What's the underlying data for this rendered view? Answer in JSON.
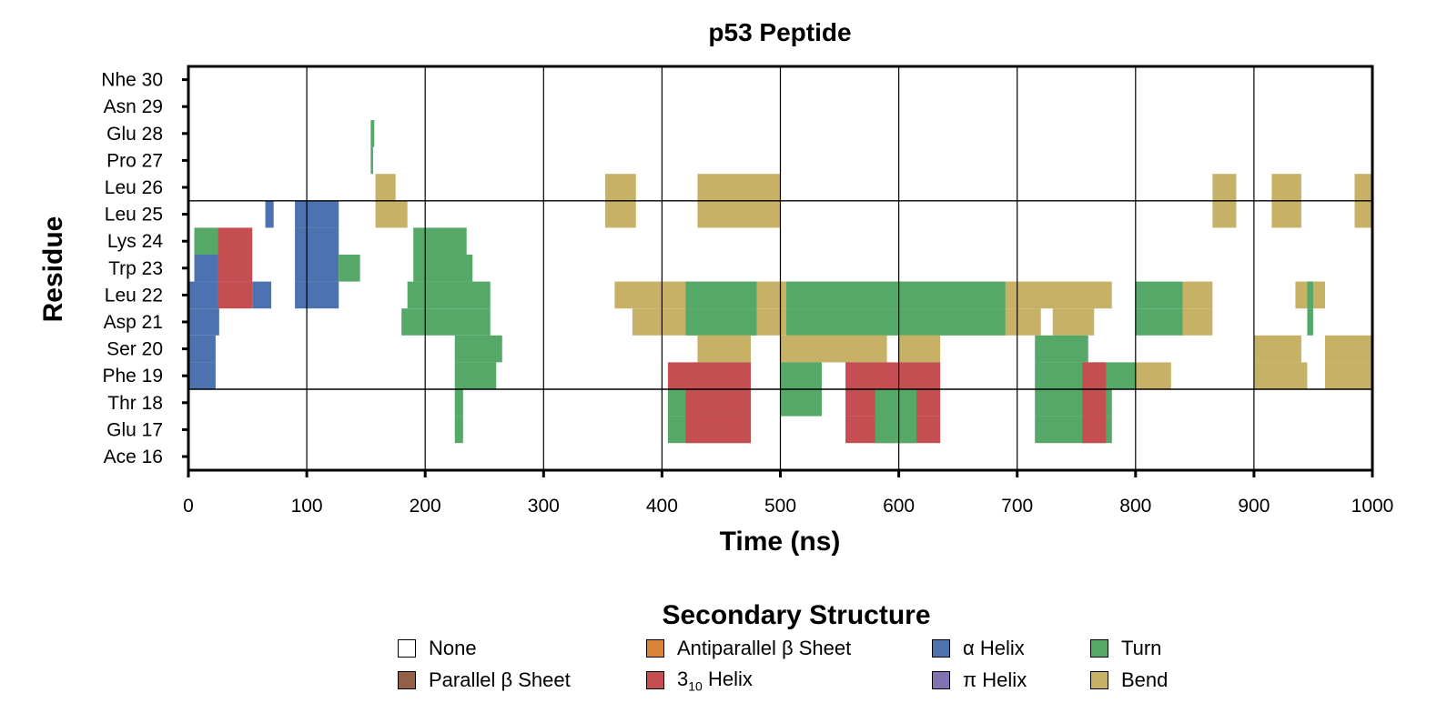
{
  "chart_data": {
    "type": "heatmap",
    "title": "p53 Peptide",
    "xlabel": "Time (ns)",
    "ylabel": "Residue",
    "xlim": [
      0,
      1000
    ],
    "xticks": [
      "0",
      "100",
      "200",
      "300",
      "400",
      "500",
      "600",
      "700",
      "800",
      "900",
      "1000"
    ],
    "residues": [
      "Ace 16",
      "Glu 17",
      "Thr 18",
      "Phe 19",
      "Ser 20",
      "Asp 21",
      "Leu 22",
      "Trp 23",
      "Lys 24",
      "Leu 25",
      "Leu 26",
      "Pro 27",
      "Glu 28",
      "Asn 29",
      "Nhe 30"
    ],
    "row_separators_after": [
      "Thr 18",
      "Leu 25"
    ],
    "legend_title": "Secondary Structure",
    "legend": [
      {
        "key": "none",
        "label": "None",
        "color": "#ffffff"
      },
      {
        "key": "antiparallel",
        "label": "Antiparallel β Sheet",
        "color": "#d9843b"
      },
      {
        "key": "alpha",
        "label": "α Helix",
        "color": "#4c72b0"
      },
      {
        "key": "turn",
        "label": "Turn",
        "color": "#55a868"
      },
      {
        "key": "parallel",
        "label": "Parallel β Sheet",
        "color": "#935f47"
      },
      {
        "key": "three10",
        "label": "3",
        "sub": "10",
        "label_suffix": " Helix",
        "color": "#c44e52"
      },
      {
        "key": "pi",
        "label": "π Helix",
        "color": "#8172b2"
      },
      {
        "key": "bend",
        "label": "Bend",
        "color": "#c7b166"
      }
    ],
    "segments": [
      {
        "residue": "Phe 19",
        "structure": "alpha",
        "start": 0,
        "end": 23
      },
      {
        "residue": "Ser 20",
        "structure": "alpha",
        "start": 0,
        "end": 23
      },
      {
        "residue": "Asp 21",
        "structure": "alpha",
        "start": 0,
        "end": 26
      },
      {
        "residue": "Leu 22",
        "structure": "alpha",
        "start": 0,
        "end": 25
      },
      {
        "residue": "Leu 22",
        "structure": "three10",
        "start": 25,
        "end": 54
      },
      {
        "residue": "Leu 22",
        "structure": "alpha",
        "start": 54,
        "end": 70
      },
      {
        "residue": "Leu 22",
        "structure": "alpha",
        "start": 90,
        "end": 127
      },
      {
        "residue": "Trp 23",
        "structure": "alpha",
        "start": 5,
        "end": 25
      },
      {
        "residue": "Trp 23",
        "structure": "three10",
        "start": 25,
        "end": 54
      },
      {
        "residue": "Trp 23",
        "structure": "alpha",
        "start": 90,
        "end": 127
      },
      {
        "residue": "Trp 23",
        "structure": "turn",
        "start": 127,
        "end": 145
      },
      {
        "residue": "Lys 24",
        "structure": "turn",
        "start": 5,
        "end": 25
      },
      {
        "residue": "Lys 24",
        "structure": "three10",
        "start": 25,
        "end": 54
      },
      {
        "residue": "Lys 24",
        "structure": "alpha",
        "start": 90,
        "end": 127
      },
      {
        "residue": "Leu 25",
        "structure": "alpha",
        "start": 65,
        "end": 72
      },
      {
        "residue": "Leu 25",
        "structure": "alpha",
        "start": 90,
        "end": 127
      },
      {
        "residue": "Trp 23",
        "structure": "turn",
        "start": 190,
        "end": 240
      },
      {
        "residue": "Leu 22",
        "structure": "turn",
        "start": 185,
        "end": 255
      },
      {
        "residue": "Asp 21",
        "structure": "turn",
        "start": 180,
        "end": 255
      },
      {
        "residue": "Lys 24",
        "structure": "turn",
        "start": 190,
        "end": 235
      },
      {
        "residue": "Ser 20",
        "structure": "turn",
        "start": 225,
        "end": 265
      },
      {
        "residue": "Phe 19",
        "structure": "turn",
        "start": 225,
        "end": 260
      },
      {
        "residue": "Glu 17",
        "structure": "turn",
        "start": 225,
        "end": 232
      },
      {
        "residue": "Thr 18",
        "structure": "turn",
        "start": 225,
        "end": 232
      },
      {
        "residue": "Leu 25",
        "structure": "bend",
        "start": 158,
        "end": 185
      },
      {
        "residue": "Leu 26",
        "structure": "bend",
        "start": 158,
        "end": 175
      },
      {
        "residue": "Leu 26",
        "structure": "bend",
        "start": 352,
        "end": 378
      },
      {
        "residue": "Leu 25",
        "structure": "bend",
        "start": 352,
        "end": 378
      },
      {
        "residue": "Leu 26",
        "structure": "bend",
        "start": 430,
        "end": 500
      },
      {
        "residue": "Leu 25",
        "structure": "bend",
        "start": 430,
        "end": 500
      },
      {
        "residue": "Leu 22",
        "structure": "bend",
        "start": 360,
        "end": 700
      },
      {
        "residue": "Asp 21",
        "structure": "bend",
        "start": 375,
        "end": 700
      },
      {
        "residue": "Leu 22",
        "structure": "turn",
        "start": 420,
        "end": 480
      },
      {
        "residue": "Asp 21",
        "structure": "turn",
        "start": 420,
        "end": 480
      },
      {
        "residue": "Leu 22",
        "structure": "turn",
        "start": 505,
        "end": 690
      },
      {
        "residue": "Asp 21",
        "structure": "turn",
        "start": 505,
        "end": 690
      },
      {
        "residue": "Ser 20",
        "structure": "bend",
        "start": 430,
        "end": 475
      },
      {
        "residue": "Ser 20",
        "structure": "bend",
        "start": 500,
        "end": 590
      },
      {
        "residue": "Ser 20",
        "structure": "bend",
        "start": 600,
        "end": 635
      },
      {
        "residue": "Phe 19",
        "structure": "three10",
        "start": 405,
        "end": 475
      },
      {
        "residue": "Thr 18",
        "structure": "turn",
        "start": 405,
        "end": 475
      },
      {
        "residue": "Glu 17",
        "structure": "turn",
        "start": 405,
        "end": 475
      },
      {
        "residue": "Thr 18",
        "structure": "three10",
        "start": 420,
        "end": 475
      },
      {
        "residue": "Glu 17",
        "structure": "three10",
        "start": 420,
        "end": 475
      },
      {
        "residue": "Phe 19",
        "structure": "turn",
        "start": 500,
        "end": 535
      },
      {
        "residue": "Thr 18",
        "structure": "turn",
        "start": 500,
        "end": 535
      },
      {
        "residue": "Phe 19",
        "structure": "three10",
        "start": 555,
        "end": 635
      },
      {
        "residue": "Thr 18",
        "structure": "three10",
        "start": 555,
        "end": 635
      },
      {
        "residue": "Glu 17",
        "structure": "three10",
        "start": 555,
        "end": 635
      },
      {
        "residue": "Thr 18",
        "structure": "turn",
        "start": 580,
        "end": 615
      },
      {
        "residue": "Glu 17",
        "structure": "turn",
        "start": 580,
        "end": 615
      },
      {
        "residue": "Asp 21",
        "structure": "bend",
        "start": 700,
        "end": 720
      },
      {
        "residue": "Asp 21",
        "structure": "bend",
        "start": 730,
        "end": 765
      },
      {
        "residue": "Leu 22",
        "structure": "bend",
        "start": 700,
        "end": 780
      },
      {
        "residue": "Leu 22",
        "structure": "turn",
        "start": 800,
        "end": 840
      },
      {
        "residue": "Leu 22",
        "structure": "bend",
        "start": 840,
        "end": 865
      },
      {
        "residue": "Asp 21",
        "structure": "turn",
        "start": 800,
        "end": 840
      },
      {
        "residue": "Asp 21",
        "structure": "bend",
        "start": 840,
        "end": 865
      },
      {
        "residue": "Ser 20",
        "structure": "turn",
        "start": 715,
        "end": 760
      },
      {
        "residue": "Phe 19",
        "structure": "turn",
        "start": 715,
        "end": 800
      },
      {
        "residue": "Thr 18",
        "structure": "turn",
        "start": 715,
        "end": 780
      },
      {
        "residue": "Glu 17",
        "structure": "turn",
        "start": 715,
        "end": 780
      },
      {
        "residue": "Phe 19",
        "structure": "three10",
        "start": 755,
        "end": 775
      },
      {
        "residue": "Thr 18",
        "structure": "three10",
        "start": 755,
        "end": 775
      },
      {
        "residue": "Glu 17",
        "structure": "three10",
        "start": 755,
        "end": 775
      },
      {
        "residue": "Phe 19",
        "structure": "bend",
        "start": 800,
        "end": 830
      },
      {
        "residue": "Leu 26",
        "structure": "bend",
        "start": 865,
        "end": 885
      },
      {
        "residue": "Leu 25",
        "structure": "bend",
        "start": 865,
        "end": 885
      },
      {
        "residue": "Leu 26",
        "structure": "bend",
        "start": 915,
        "end": 940
      },
      {
        "residue": "Leu 25",
        "structure": "bend",
        "start": 915,
        "end": 940
      },
      {
        "residue": "Leu 26",
        "structure": "bend",
        "start": 985,
        "end": 1000
      },
      {
        "residue": "Leu 25",
        "structure": "bend",
        "start": 985,
        "end": 1000
      },
      {
        "residue": "Ser 20",
        "structure": "bend",
        "start": 900,
        "end": 940
      },
      {
        "residue": "Phe 19",
        "structure": "bend",
        "start": 900,
        "end": 945
      },
      {
        "residue": "Ser 20",
        "structure": "bend",
        "start": 960,
        "end": 1000
      },
      {
        "residue": "Phe 19",
        "structure": "bend",
        "start": 960,
        "end": 1000
      },
      {
        "residue": "Leu 22",
        "structure": "bend",
        "start": 935,
        "end": 960
      },
      {
        "residue": "Asp 21",
        "structure": "turn",
        "start": 945,
        "end": 950
      },
      {
        "residue": "Leu 22",
        "structure": "turn",
        "start": 945,
        "end": 950
      },
      {
        "residue": "Glu 28",
        "structure": "turn",
        "start": 154,
        "end": 157
      },
      {
        "residue": "Pro 27",
        "structure": "turn",
        "start": 154,
        "end": 156
      }
    ]
  }
}
